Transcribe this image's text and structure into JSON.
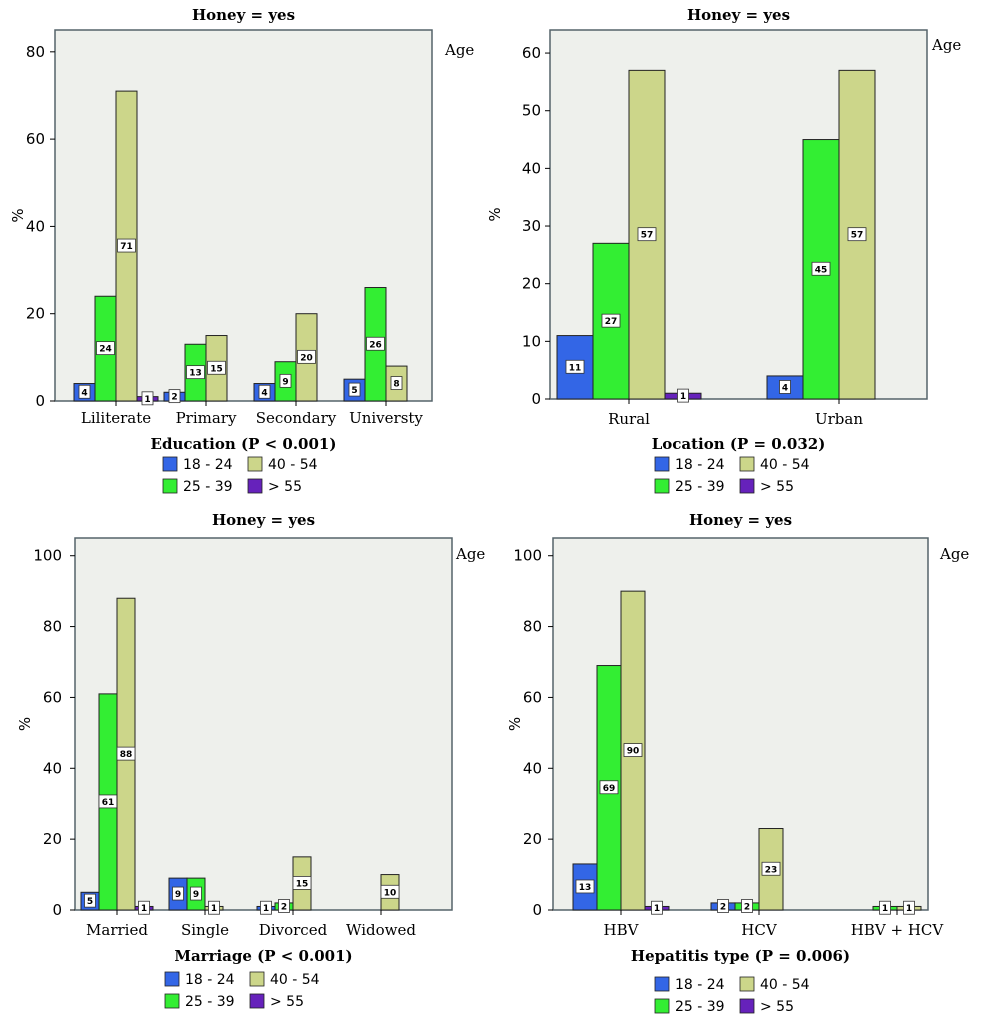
{
  "colors": {
    "age_18_24": "#3366e6",
    "age_25_39": "#33ee33",
    "age_40_54": "#ccd68a",
    "age_gt55": "#6622bb",
    "plot_bg": "#eef0ec",
    "plot_border": "#55636a"
  },
  "legend": {
    "title": "Age",
    "items": [
      "18 - 24",
      "25 - 39",
      "40 - 54",
      "> 55"
    ]
  },
  "chart_data": [
    {
      "type": "bar",
      "title": "Honey = yes",
      "xlabel": "Education (P < 0.001)",
      "ylabel": "%",
      "ylim": [
        0,
        85
      ],
      "yticks": [
        "0",
        "20",
        "40",
        "60",
        "80"
      ],
      "categories": [
        "Liliterate",
        "Primary",
        "Secondary",
        "Universty"
      ],
      "series": [
        {
          "name": "18 - 24",
          "values": [
            4,
            2,
            4,
            5
          ],
          "labels": [
            "4",
            "2",
            "4",
            "5"
          ]
        },
        {
          "name": "25 - 39",
          "values": [
            24,
            13,
            9,
            26
          ],
          "labels": [
            "24",
            "13",
            "9",
            "26"
          ]
        },
        {
          "name": "40 - 54",
          "values": [
            71,
            15,
            20,
            8
          ],
          "labels": [
            "71",
            "15",
            "20",
            "8"
          ]
        },
        {
          "name": "> 55",
          "values": [
            1,
            0,
            0,
            0
          ],
          "labels": [
            "1",
            "",
            "",
            ""
          ]
        }
      ],
      "grid": false,
      "legend_placement": "below"
    },
    {
      "type": "bar",
      "title": "Honey = yes",
      "xlabel": "Location (P = 0.032)",
      "ylabel": "%",
      "ylim": [
        0,
        64
      ],
      "yticks": [
        "0",
        "10",
        "20",
        "30",
        "40",
        "50",
        "60"
      ],
      "categories": [
        "Rural",
        "Urban"
      ],
      "series": [
        {
          "name": "18 - 24",
          "values": [
            11,
            4
          ],
          "labels": [
            "11",
            "4"
          ]
        },
        {
          "name": "25 - 39",
          "values": [
            27,
            45
          ],
          "labels": [
            "27",
            "45"
          ]
        },
        {
          "name": "40 - 54",
          "values": [
            57,
            57
          ],
          "labels": [
            "57",
            "57"
          ]
        },
        {
          "name": "> 55",
          "values": [
            1,
            0
          ],
          "labels": [
            "1",
            ""
          ]
        }
      ],
      "grid": false,
      "legend_placement": "below"
    },
    {
      "type": "bar",
      "title": "Honey = yes",
      "xlabel": "Marriage (P < 0.001)",
      "ylabel": "%",
      "ylim": [
        0,
        105
      ],
      "yticks": [
        "0",
        "20",
        "40",
        "60",
        "80",
        "100"
      ],
      "categories": [
        "Married",
        "Single",
        "Divorced",
        "Widowed"
      ],
      "series": [
        {
          "name": "18 - 24",
          "values": [
            5,
            9,
            1,
            0
          ],
          "labels": [
            "5",
            "9",
            "1",
            ""
          ]
        },
        {
          "name": "25 - 39",
          "values": [
            61,
            9,
            2,
            0
          ],
          "labels": [
            "61",
            "9",
            "2",
            ""
          ]
        },
        {
          "name": "40 - 54",
          "values": [
            88,
            1,
            15,
            10
          ],
          "labels": [
            "88",
            "1",
            "15",
            "10"
          ]
        },
        {
          "name": "> 55",
          "values": [
            1,
            0,
            0,
            0
          ],
          "labels": [
            "1",
            "",
            "",
            ""
          ]
        }
      ],
      "grid": false,
      "legend_placement": "below"
    },
    {
      "type": "bar",
      "title": "Honey = yes",
      "xlabel": "Hepatitis type (P = 0.006)",
      "ylabel": "%",
      "ylim": [
        0,
        105
      ],
      "yticks": [
        "0",
        "20",
        "40",
        "60",
        "80",
        "100"
      ],
      "categories": [
        "HBV",
        "HCV",
        "HBV + HCV"
      ],
      "series": [
        {
          "name": "18 - 24",
          "values": [
            13,
            2,
            0
          ],
          "labels": [
            "13",
            "2",
            ""
          ]
        },
        {
          "name": "25 - 39",
          "values": [
            69,
            2,
            1
          ],
          "labels": [
            "69",
            "2",
            "1"
          ]
        },
        {
          "name": "40 - 54",
          "values": [
            90,
            23,
            1
          ],
          "labels": [
            "90",
            "23",
            "1"
          ]
        },
        {
          "name": "> 55",
          "values": [
            1,
            0,
            0
          ],
          "labels": [
            "1",
            "",
            ""
          ]
        }
      ],
      "grid": false,
      "legend_placement": "below"
    }
  ]
}
